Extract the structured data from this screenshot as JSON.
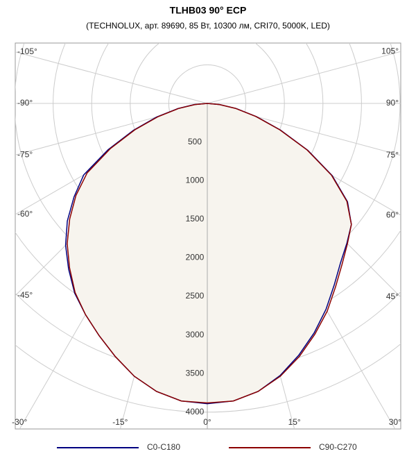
{
  "chart_data": {
    "type": "polar",
    "title": "TLHB03 90° ECP",
    "subtitle": "(TECHNOLUX, арт. 89690, 85 Вт, 10300 лм, CRI70, 5000K, LED)",
    "angles": [
      -90,
      -85,
      -80,
      -75,
      -70,
      -65,
      -60,
      -55,
      -50,
      -45,
      -40,
      -35,
      -30,
      -25,
      -20,
      -15,
      -10,
      -5,
      0,
      5,
      10,
      15,
      20,
      25,
      30,
      35,
      40,
      45,
      50,
      55,
      60,
      65,
      70,
      75,
      80,
      85,
      90
    ],
    "series": [
      {
        "name": "C0-C180",
        "color": "#000080",
        "values": [
          0,
          170,
          390,
          680,
          1020,
          1420,
          1850,
          2110,
          2370,
          2600,
          2800,
          3000,
          3160,
          3320,
          3490,
          3660,
          3790,
          3870,
          3890,
          3870,
          3790,
          3650,
          3470,
          3280,
          3080,
          2870,
          2690,
          2560,
          2440,
          2220,
          1870,
          1440,
          1010,
          660,
          380,
          160,
          0
        ]
      },
      {
        "name": "C90-C270",
        "color": "#8b0000",
        "values": [
          0,
          160,
          380,
          660,
          1000,
          1390,
          1800,
          2080,
          2330,
          2570,
          2780,
          2990,
          3160,
          3320,
          3490,
          3660,
          3790,
          3870,
          3880,
          3870,
          3790,
          3660,
          3490,
          3300,
          3110,
          2900,
          2720,
          2570,
          2440,
          2210,
          1860,
          1430,
          1000,
          650,
          370,
          160,
          0
        ]
      }
    ],
    "fill": "#f7f4ee",
    "rlim": [
      0,
      5000
    ],
    "rticks": [
      500,
      1000,
      1500,
      2000,
      2500,
      3000,
      3500,
      4000
    ],
    "angle_ticks": [
      {
        "value": -105,
        "label": "-105°"
      },
      {
        "value": -90,
        "label": "-90°"
      },
      {
        "value": -75,
        "label": "-75°"
      },
      {
        "value": -60,
        "label": "-60°"
      },
      {
        "value": -45,
        "label": "-45°"
      },
      {
        "value": -30,
        "label": "-30°"
      },
      {
        "value": -15,
        "label": "-15°"
      },
      {
        "value": 0,
        "label": "0°"
      },
      {
        "value": 15,
        "label": "15°"
      },
      {
        "value": 30,
        "label": "30°"
      },
      {
        "value": 45,
        "label": "45°"
      },
      {
        "value": 60,
        "label": "60°"
      },
      {
        "value": 75,
        "label": "75°"
      },
      {
        "value": 90,
        "label": "90°"
      },
      {
        "value": 105,
        "label": "105°"
      }
    ],
    "grid": true
  }
}
